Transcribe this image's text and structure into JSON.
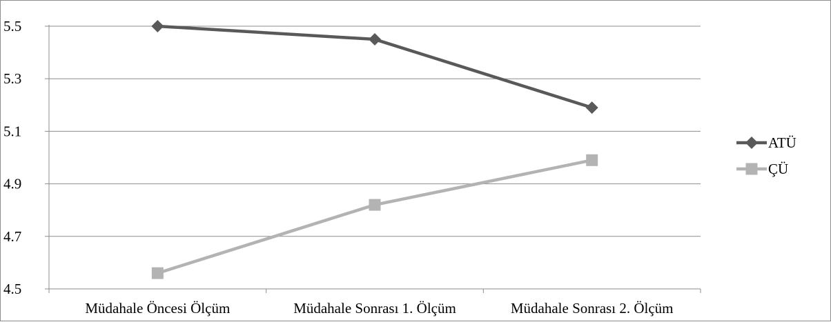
{
  "chart_data": {
    "type": "line",
    "title": "",
    "xlabel": "",
    "ylabel": "",
    "categories": [
      "Müdahale Öncesi Ölçüm",
      "Müdahale Sonrası 1. Ölçüm",
      "Müdahale Sonrası 2. Ölçüm"
    ],
    "series": [
      {
        "name": "ATÜ",
        "values": [
          5.5,
          5.45,
          5.19
        ],
        "color": "#595959",
        "marker": "diamond"
      },
      {
        "name": "ÇÜ",
        "values": [
          4.56,
          4.82,
          4.99
        ],
        "color": "#b3b3b3",
        "marker": "square"
      }
    ],
    "ylim": [
      4.5,
      5.5
    ],
    "yticks": [
      "4.5",
      "4.7",
      "4.9",
      "5.1",
      "5.3",
      "5.5"
    ],
    "grid": true,
    "legend": "right"
  }
}
